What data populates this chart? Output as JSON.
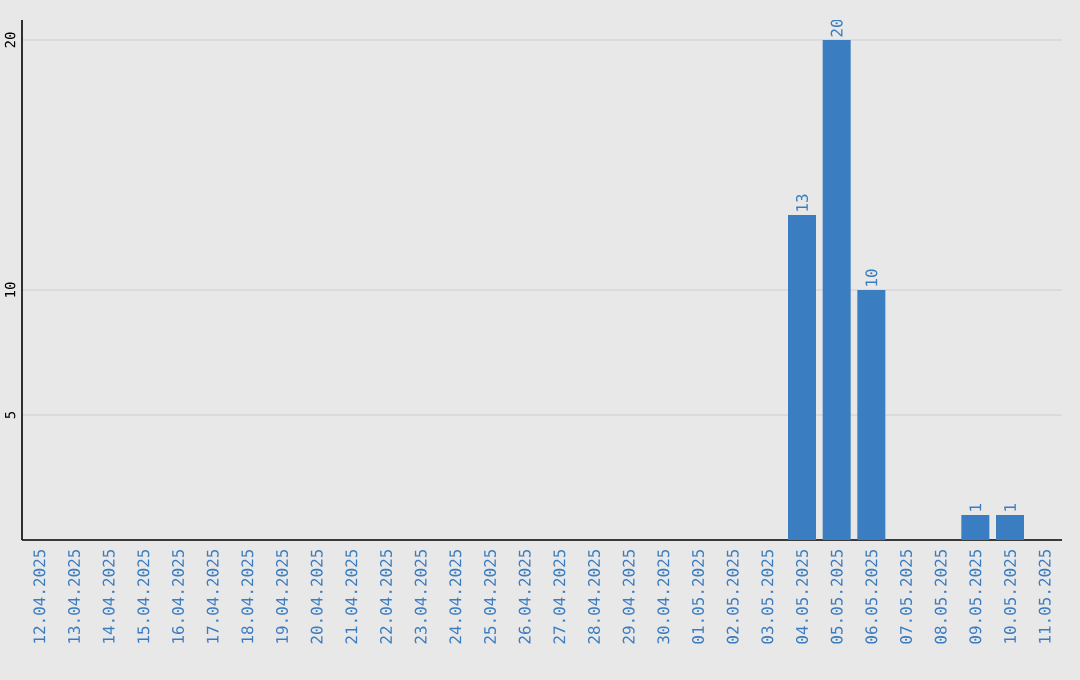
{
  "chart_data": {
    "type": "bar",
    "categories": [
      "12.04.2025",
      "13.04.2025",
      "14.04.2025",
      "15.04.2025",
      "16.04.2025",
      "17.04.2025",
      "18.04.2025",
      "19.04.2025",
      "20.04.2025",
      "21.04.2025",
      "22.04.2025",
      "23.04.2025",
      "24.04.2025",
      "25.04.2025",
      "26.04.2025",
      "27.04.2025",
      "28.04.2025",
      "29.04.2025",
      "30.04.2025",
      "01.05.2025",
      "02.05.2025",
      "03.05.2025",
      "04.05.2025",
      "05.05.2025",
      "06.05.2025",
      "07.05.2025",
      "08.05.2025",
      "09.05.2025",
      "10.05.2025",
      "11.05.2025"
    ],
    "values": [
      0,
      0,
      0,
      0,
      0,
      0,
      0,
      0,
      0,
      0,
      0,
      0,
      0,
      0,
      0,
      0,
      0,
      0,
      0,
      0,
      0,
      0,
      13,
      20,
      10,
      0,
      0,
      1,
      1,
      0
    ],
    "value_labels": [
      null,
      null,
      null,
      null,
      null,
      null,
      null,
      null,
      null,
      null,
      null,
      null,
      null,
      null,
      null,
      null,
      null,
      null,
      null,
      null,
      null,
      null,
      "13",
      "20",
      "10",
      null,
      null,
      "1",
      "1",
      null
    ],
    "color": "#3b7dc1",
    "ylim": [
      0,
      20.8
    ],
    "yticks": [
      5,
      10,
      20
    ],
    "grid": "y"
  }
}
